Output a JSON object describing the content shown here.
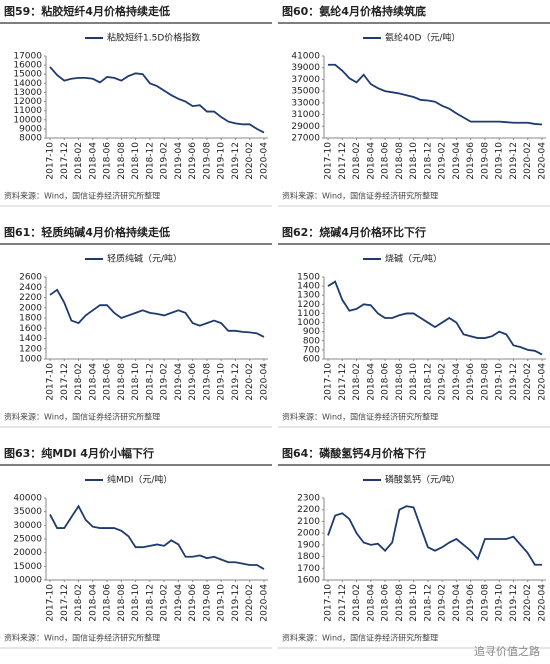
{
  "chart_data": [
    {
      "type": "line",
      "title": "图59：粘胶短纤4月价格持续走低",
      "source": "资料来源：Wind，国信证券经济研究所整理",
      "categories": [
        "2017-10",
        null,
        "2017-12",
        null,
        "2018-02",
        null,
        "2018-04",
        null,
        "2018-06",
        null,
        "2018-08",
        null,
        "2018-10",
        null,
        "2018-12",
        null,
        "2019-02",
        null,
        "2019-04",
        null,
        "2019-06",
        null,
        "2019-08",
        null,
        "2019-10",
        null,
        "2019-12",
        null,
        "2020-02",
        null,
        "2020-04"
      ],
      "series": [
        {
          "name": "粘胶短纤1.5D价格指数",
          "color": "#1f3a6e",
          "values": [
            15800,
            14900,
            14300,
            14500,
            14600,
            14600,
            14500,
            14100,
            14700,
            14600,
            14300,
            14800,
            15100,
            15000,
            14000,
            13700,
            13200,
            12700,
            12300,
            12000,
            11500,
            11600,
            10900,
            10900,
            10300,
            9800,
            9600,
            9500,
            9500,
            9000,
            8600
          ]
        }
      ],
      "ylim": [
        8000,
        17000
      ],
      "yticks": [
        8000,
        9000,
        10000,
        11000,
        12000,
        13000,
        14000,
        15000,
        16000,
        17000
      ]
    },
    {
      "type": "line",
      "title": "图60：氨纶4月价格持续筑底",
      "source": "资料来源：Wind，国信证券经济研究所整理",
      "categories": [
        "2017-10",
        null,
        "2017-12",
        null,
        "2018-02",
        null,
        "2018-04",
        null,
        "2018-06",
        null,
        "2018-08",
        null,
        "2018-10",
        null,
        "2018-12",
        null,
        "2019-02",
        null,
        "2019-04",
        null,
        "2019-06",
        null,
        "2019-08",
        null,
        "2019-10",
        null,
        "2019-12",
        null,
        "2020-02",
        null,
        "2020-04"
      ],
      "series": [
        {
          "name": "氨纶40D（元/吨）",
          "color": "#1f3a6e",
          "values": [
            39500,
            39500,
            38500,
            37200,
            36500,
            37800,
            36200,
            35500,
            35000,
            34800,
            34600,
            34300,
            34000,
            33500,
            33400,
            33200,
            32500,
            32000,
            31200,
            30500,
            29800,
            29800,
            29800,
            29800,
            29800,
            29700,
            29600,
            29600,
            29600,
            29400,
            29300
          ]
        }
      ],
      "ylim": [
        27000,
        41000
      ],
      "yticks": [
        27000,
        29000,
        31000,
        33000,
        35000,
        37000,
        39000,
        41000
      ]
    },
    {
      "type": "line",
      "title": "图61：轻质纯碱4月价格持续走低",
      "source": "资料来源：Wind，国信证券经济研究所整理",
      "categories": [
        "2017-10",
        null,
        "2017-12",
        null,
        "2018-02",
        null,
        "2018-04",
        null,
        "2018-06",
        null,
        "2018-08",
        null,
        "2018-10",
        null,
        "2018-12",
        null,
        "2019-02",
        null,
        "2019-04",
        null,
        "2019-06",
        null,
        "2019-08",
        null,
        "2019-10",
        null,
        "2019-12",
        null,
        "2020-02",
        null,
        "2020-04"
      ],
      "series": [
        {
          "name": "轻质纯碱（元/吨）",
          "color": "#1f3a6e",
          "values": [
            2250,
            2350,
            2100,
            1750,
            1700,
            1850,
            1950,
            2050,
            2050,
            1900,
            1800,
            1850,
            1900,
            1950,
            1900,
            1880,
            1850,
            1900,
            1950,
            1900,
            1700,
            1650,
            1700,
            1750,
            1700,
            1550,
            1550,
            1530,
            1520,
            1500,
            1430
          ]
        }
      ],
      "ylim": [
        1000,
        2600
      ],
      "yticks": [
        1000,
        1200,
        1400,
        1600,
        1800,
        2000,
        2200,
        2400,
        2600
      ]
    },
    {
      "type": "line",
      "title": "图62：烧碱4月价格环比下行",
      "source": "资料来源：Wind，国信证券经济研究所整理",
      "categories": [
        "2017-10",
        null,
        "2017-12",
        null,
        "2018-02",
        null,
        "2018-04",
        null,
        "2018-06",
        null,
        "2018-08",
        null,
        "2018-10",
        null,
        "2018-12",
        null,
        "2019-02",
        null,
        "2019-04",
        null,
        "2019-06",
        null,
        "2019-08",
        null,
        "2019-10",
        null,
        "2019-12",
        null,
        "2020-02",
        null,
        "2020-04"
      ],
      "series": [
        {
          "name": "烧碱（元/吨）",
          "color": "#1f3a6e",
          "values": [
            1400,
            1450,
            1250,
            1130,
            1150,
            1200,
            1190,
            1100,
            1050,
            1050,
            1080,
            1100,
            1100,
            1050,
            1000,
            950,
            1000,
            1050,
            1000,
            870,
            850,
            830,
            830,
            850,
            900,
            870,
            750,
            730,
            700,
            690,
            650
          ]
        }
      ],
      "ylim": [
        600,
        1500
      ],
      "yticks": [
        600,
        700,
        800,
        900,
        1000,
        1100,
        1200,
        1300,
        1400,
        1500
      ]
    },
    {
      "type": "line",
      "title": "图63：纯MDI 4月价小幅下行",
      "source": "资料来源：Wind，国信证券经济研究所整理",
      "categories": [
        "2017-10",
        null,
        "2017-12",
        null,
        "2018-02",
        null,
        "2018-04",
        null,
        "2018-06",
        null,
        "2018-08",
        null,
        "2018-10",
        null,
        "2018-12",
        null,
        "2019-02",
        null,
        "2019-04",
        null,
        "2019-06",
        null,
        "2019-08",
        null,
        "2019-10",
        null,
        "2019-12",
        null,
        "2020-02",
        null,
        "2020-04"
      ],
      "series": [
        {
          "name": "纯MDI（元/吨）",
          "color": "#1f3a6e",
          "values": [
            34000,
            29000,
            29000,
            33000,
            37000,
            32000,
            29500,
            29000,
            29000,
            29000,
            28000,
            26000,
            22000,
            22000,
            22500,
            23000,
            22500,
            24500,
            23000,
            18500,
            18500,
            19000,
            18000,
            18500,
            17500,
            16500,
            16500,
            16000,
            15500,
            15500,
            14000
          ]
        }
      ],
      "ylim": [
        10000,
        40000
      ],
      "yticks": [
        10000,
        15000,
        20000,
        25000,
        30000,
        35000,
        40000
      ]
    },
    {
      "type": "line",
      "title": "图64：磷酸氢钙4月价格下行",
      "source": "资料来源：Wind，国信证券经济研究所整理",
      "categories": [
        "2017-10",
        null,
        "2017-12",
        null,
        "2018-02",
        null,
        "2018-04",
        null,
        "2018-06",
        null,
        "2018-08",
        null,
        "2018-10",
        null,
        "2018-12",
        null,
        "2019-02",
        null,
        "2019-04",
        null,
        "2019-06",
        null,
        "2019-08",
        null,
        "2019-10",
        null,
        "2019-12",
        null,
        "2020-02",
        null,
        "2020-04"
      ],
      "series": [
        {
          "name": "磷酸氢钙（元/吨）",
          "color": "#1f3a6e",
          "values": [
            1980,
            2150,
            2170,
            2120,
            2000,
            1920,
            1900,
            1910,
            1850,
            1920,
            2200,
            2230,
            2220,
            2050,
            1880,
            1850,
            1880,
            1920,
            1950,
            1900,
            1850,
            1780,
            1950,
            1950,
            1950,
            1950,
            1970,
            1900,
            1830,
            1730,
            1730
          ]
        }
      ],
      "ylim": [
        1600,
        2300
      ],
      "yticks": [
        1600,
        1700,
        1800,
        1900,
        2000,
        2100,
        2200,
        2300
      ]
    }
  ],
  "watermark": "追寻价值之路"
}
